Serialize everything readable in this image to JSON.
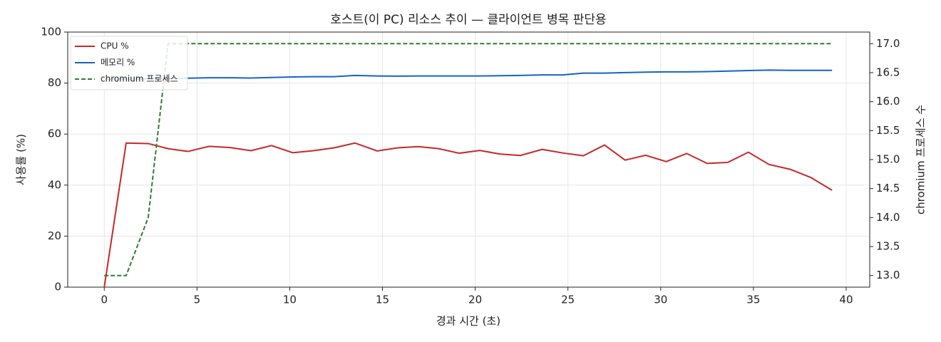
{
  "chart_data": {
    "type": "line",
    "title": "호스트(이 PC) 리소스 추이 — 클라이언트 병목 판단용",
    "x_label": "경과 시간 (초)",
    "y_label": "사용률 (%)",
    "y2_label": "chromium 프로세스 수",
    "x": [
      0,
      1.18,
      2.37,
      3.44,
      4.51,
      5.65,
      6.8,
      7.91,
      9.02,
      10.16,
      11.27,
      12.38,
      13.52,
      14.71,
      15.82,
      16.93,
      18.03,
      19.14,
      20.25,
      21.32,
      22.43,
      23.61,
      24.72,
      25.83,
      26.97,
      28.08,
      29.19,
      30.3,
      31.4,
      32.51,
      33.62,
      34.73,
      35.84,
      36.98,
      38.09,
      39.24
    ],
    "series": [
      {
        "name": "CPU %",
        "color": "#c62828",
        "linestyle": "solid",
        "values": [
          0,
          56.5,
          56.3,
          54.3,
          53.2,
          55.2,
          54.7,
          53.5,
          55.5,
          52.7,
          53.5,
          54.6,
          56.5,
          53.4,
          54.6,
          55.1,
          54.3,
          52.5,
          53.6,
          52.2,
          51.6,
          54.0,
          52.6,
          51.5,
          55.7,
          49.8,
          51.7,
          49.2,
          52.4,
          48.5,
          48.9,
          52.9,
          48.1,
          46.2,
          43.0,
          38.0
        ]
      },
      {
        "name": "메모리 %",
        "color": "#1565c0",
        "linestyle": "solid",
        "values": [
          81.5,
          81.6,
          81.7,
          81.8,
          81.9,
          82.1,
          82.1,
          82.0,
          82.2,
          82.4,
          82.5,
          82.5,
          83.0,
          82.8,
          82.7,
          82.8,
          82.8,
          82.8,
          82.8,
          82.9,
          83.0,
          83.2,
          83.2,
          83.9,
          83.9,
          84.1,
          84.3,
          84.4,
          84.4,
          84.5,
          84.7,
          84.9,
          85.1,
          85.0,
          85.0,
          85.0
        ]
      },
      {
        "name": "chromium 프로세스",
        "color": "#2e7d32",
        "linestyle": "dashed",
        "axis": "y2",
        "values": [
          13,
          13,
          14,
          17,
          17,
          17,
          17,
          17,
          17,
          17,
          17,
          17,
          17,
          17,
          17,
          17,
          17,
          17,
          17,
          17,
          17,
          17,
          17,
          17,
          17,
          17,
          17,
          17,
          17,
          17,
          17,
          17,
          17,
          17,
          17,
          17
        ]
      }
    ],
    "xlim": [
      -1.97,
      41.27
    ],
    "xticks": [
      0,
      5,
      10,
      15,
      20,
      25,
      30,
      35,
      40
    ],
    "ylim": [
      0,
      100
    ],
    "yticks": [
      0,
      20,
      40,
      60,
      80,
      100
    ],
    "y2lim": [
      12.8,
      17.2
    ],
    "y2ticks": [
      {
        "value": 13,
        "label": "13.0"
      },
      13.5,
      {
        "value": 14,
        "label": "14.0"
      },
      14.5,
      {
        "value": 15,
        "label": "15.0"
      },
      15.5,
      {
        "value": 16,
        "label": "16.0"
      },
      16.5,
      {
        "value": 17,
        "label": "17.0"
      }
    ],
    "grid": true,
    "legend": "upper left"
  }
}
